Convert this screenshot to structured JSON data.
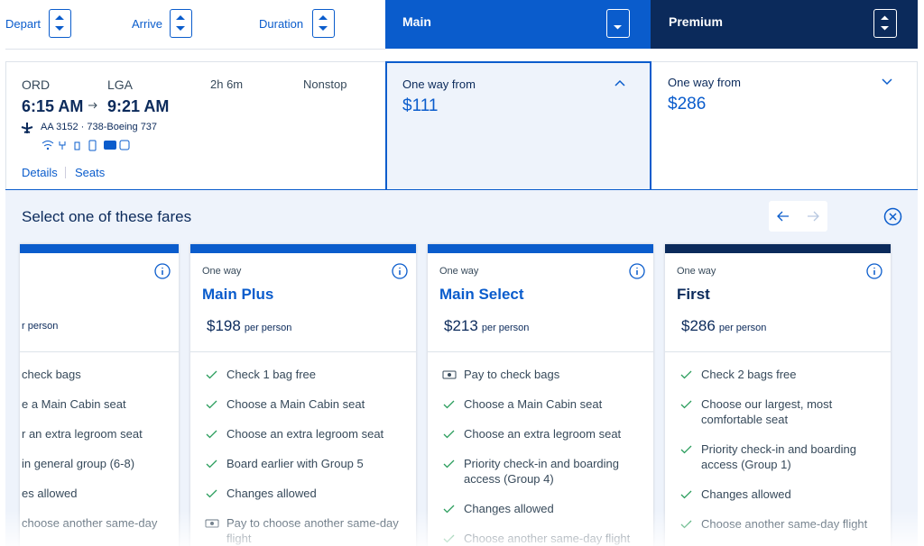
{
  "sort_bar": {
    "depart": "Depart",
    "arrive": "Arrive",
    "duration": "Duration"
  },
  "cabins": {
    "main": "Main",
    "premium": "Premium"
  },
  "flight": {
    "origin": "ORD",
    "destination": "LGA",
    "duration": "2h 6m",
    "stops": "Nonstop",
    "depart_time": "6:15 AM",
    "arrive_time": "9:21 AM",
    "flight_info": "AA 3152 · 738-Boeing 737",
    "tv_icon": "TV",
    "details_link": "Details",
    "seats_link": "Seats"
  },
  "prices": {
    "main": {
      "label": "One way from",
      "price": "$111"
    },
    "premium": {
      "label": "One way from",
      "price": "$286"
    }
  },
  "fares_panel": {
    "title": "Select one of these fares",
    "cards": [
      {
        "type": null,
        "name": null,
        "price": null,
        "unit": "r person",
        "features": [
          {
            "text": "check bags",
            "included": false
          },
          {
            "text": "e a Main Cabin seat",
            "included": false
          },
          {
            "text": "r an extra legroom seat",
            "included": false
          },
          {
            "text": "in general group (6-8)",
            "included": false
          },
          {
            "text": "es allowed",
            "included": false
          },
          {
            "text": "choose another same-day",
            "included": false
          }
        ]
      },
      {
        "type": "One way",
        "name": "Main Plus",
        "price": "$198",
        "unit": "per person",
        "features": [
          {
            "text": "Check 1 bag free",
            "included": true
          },
          {
            "text": "Choose a Main Cabin seat",
            "included": true
          },
          {
            "text": "Choose an extra legroom seat",
            "included": true
          },
          {
            "text": "Board earlier with Group 5",
            "included": true
          },
          {
            "text": "Changes allowed",
            "included": true
          },
          {
            "text": "Pay to choose another same-day flight",
            "included": false
          }
        ]
      },
      {
        "type": "One way",
        "name": "Main Select",
        "price": "$213",
        "unit": "per person",
        "features": [
          {
            "text": "Pay to check bags",
            "included": false
          },
          {
            "text": "Choose a Main Cabin seat",
            "included": true
          },
          {
            "text": "Choose an extra legroom seat",
            "included": true
          },
          {
            "text": "Priority check-in and boarding access (Group 4)",
            "included": true
          },
          {
            "text": "Changes allowed",
            "included": true
          },
          {
            "text": "Choose another same-day flight",
            "included": true
          }
        ]
      },
      {
        "type": "One way",
        "name": "First",
        "price": "$286",
        "unit": "per person",
        "features": [
          {
            "text": "Check 2 bags free",
            "included": true
          },
          {
            "text": "Choose our largest, most comfortable seat",
            "included": true
          },
          {
            "text": "Priority check-in and boarding access (Group 1)",
            "included": true
          },
          {
            "text": "Changes allowed",
            "included": true
          },
          {
            "text": "Choose another same-day flight",
            "included": true
          }
        ]
      }
    ]
  }
}
